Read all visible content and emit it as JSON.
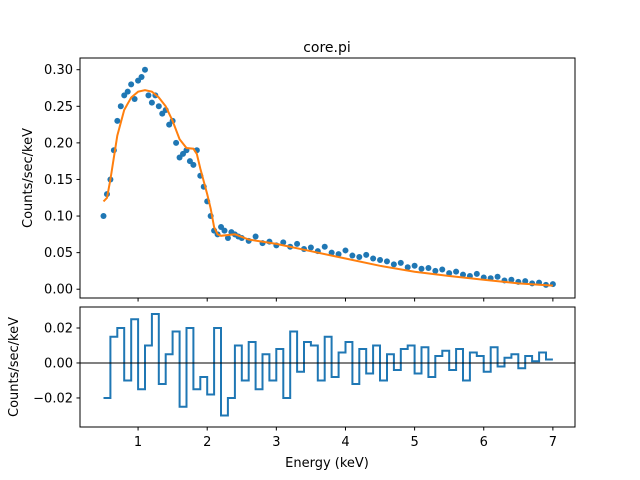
{
  "chart_data": [
    {
      "type": "scatter",
      "title": "core.pi",
      "xlabel": "",
      "ylabel": "Counts/sec/keV",
      "xlim": [
        0.16,
        7.32
      ],
      "ylim": [
        -0.012,
        0.316
      ],
      "xticks": [
        1,
        2,
        3,
        4,
        5,
        6,
        7
      ],
      "xtick_labels_shown": false,
      "yticks": [
        "0.00",
        "0.05",
        "0.10",
        "0.15",
        "0.20",
        "0.25",
        "0.30"
      ],
      "grid": false,
      "colors": {
        "data": "#1f77b4",
        "model": "#ff7f0e"
      },
      "data": {
        "x": [
          0.5,
          0.55,
          0.6,
          0.65,
          0.7,
          0.75,
          0.8,
          0.85,
          0.9,
          0.95,
          1.0,
          1.05,
          1.1,
          1.15,
          1.2,
          1.25,
          1.3,
          1.35,
          1.4,
          1.45,
          1.5,
          1.55,
          1.6,
          1.65,
          1.7,
          1.75,
          1.8,
          1.85,
          1.9,
          1.95,
          2.0,
          2.05,
          2.1,
          2.15,
          2.2,
          2.25,
          2.3,
          2.35,
          2.4,
          2.45,
          2.5,
          2.6,
          2.7,
          2.8,
          2.9,
          3.0,
          3.1,
          3.2,
          3.3,
          3.4,
          3.5,
          3.6,
          3.7,
          3.8,
          3.9,
          4.0,
          4.1,
          4.2,
          4.3,
          4.4,
          4.5,
          4.6,
          4.7,
          4.8,
          4.9,
          5.0,
          5.1,
          5.2,
          5.3,
          5.4,
          5.5,
          5.6,
          5.7,
          5.8,
          5.9,
          6.0,
          6.1,
          6.2,
          6.3,
          6.4,
          6.5,
          6.6,
          6.7,
          6.8,
          6.9,
          7.0
        ],
        "y": [
          0.1,
          0.13,
          0.15,
          0.19,
          0.23,
          0.25,
          0.265,
          0.27,
          0.28,
          0.26,
          0.285,
          0.29,
          0.3,
          0.265,
          0.255,
          0.265,
          0.25,
          0.24,
          0.245,
          0.225,
          0.23,
          0.2,
          0.18,
          0.185,
          0.19,
          0.175,
          0.17,
          0.19,
          0.155,
          0.14,
          0.12,
          0.1,
          0.08,
          0.075,
          0.085,
          0.08,
          0.07,
          0.078,
          0.075,
          0.072,
          0.07,
          0.066,
          0.072,
          0.063,
          0.065,
          0.06,
          0.064,
          0.058,
          0.062,
          0.055,
          0.057,
          0.052,
          0.058,
          0.05,
          0.048,
          0.053,
          0.046,
          0.044,
          0.047,
          0.042,
          0.04,
          0.038,
          0.034,
          0.036,
          0.03,
          0.032,
          0.028,
          0.029,
          0.025,
          0.027,
          0.022,
          0.024,
          0.02,
          0.018,
          0.021,
          0.016,
          0.015,
          0.017,
          0.012,
          0.013,
          0.01,
          0.011,
          0.008,
          0.009,
          0.006,
          0.007
        ]
      },
      "model": {
        "x": [
          0.5,
          0.55,
          0.6,
          0.7,
          0.8,
          0.9,
          1.0,
          1.1,
          1.2,
          1.3,
          1.4,
          1.5,
          1.6,
          1.7,
          1.8,
          1.85,
          1.9,
          2.0,
          2.05,
          2.1,
          2.15,
          2.2,
          2.4,
          2.6,
          3.0,
          3.5,
          4.0,
          4.5,
          5.0,
          5.5,
          6.0,
          6.5,
          7.0
        ],
        "y": [
          0.12,
          0.125,
          0.15,
          0.21,
          0.245,
          0.262,
          0.27,
          0.272,
          0.27,
          0.262,
          0.25,
          0.23,
          0.205,
          0.193,
          0.192,
          0.185,
          0.165,
          0.13,
          0.11,
          0.085,
          0.075,
          0.073,
          0.075,
          0.068,
          0.062,
          0.052,
          0.042,
          0.032,
          0.024,
          0.018,
          0.013,
          0.008,
          0.005
        ]
      }
    },
    {
      "type": "line",
      "xlabel": "Energy (keV)",
      "ylabel": "Counts/sec/keV",
      "xlim": [
        0.16,
        7.32
      ],
      "ylim": [
        -0.0366,
        0.032
      ],
      "xticks": [
        "1",
        "2",
        "3",
        "4",
        "5",
        "6",
        "7"
      ],
      "yticks": [
        "−0.02",
        "0.00",
        "0.02"
      ],
      "reference_line": 0,
      "grid": false,
      "colors": {
        "residuals": "#1f77b4",
        "zero": "#000000"
      },
      "residuals": {
        "x_start": 0.5,
        "bin_width_keV": 0.1,
        "y": [
          -0.02,
          0.015,
          0.02,
          -0.01,
          0.025,
          -0.015,
          0.01,
          0.028,
          -0.012,
          0.005,
          0.018,
          -0.025,
          0.02,
          -0.015,
          -0.008,
          -0.018,
          0.02,
          -0.03,
          -0.02,
          0.01,
          -0.01,
          0.012,
          -0.015,
          0.005,
          -0.01,
          0.008,
          -0.02,
          0.018,
          -0.005,
          0.012,
          0.01,
          -0.01,
          0.015,
          -0.008,
          0.006,
          0.012,
          -0.012,
          0.008,
          -0.006,
          0.01,
          -0.01,
          0.005,
          -0.004,
          0.008,
          0.01,
          -0.006,
          0.009,
          -0.008,
          0.004,
          0.007,
          -0.004,
          0.008,
          -0.01,
          0.006,
          0.004,
          -0.005,
          0.009,
          -0.002,
          0.003,
          0.005,
          -0.003,
          0.004,
          0.001,
          0.006,
          0.002
        ]
      }
    }
  ]
}
